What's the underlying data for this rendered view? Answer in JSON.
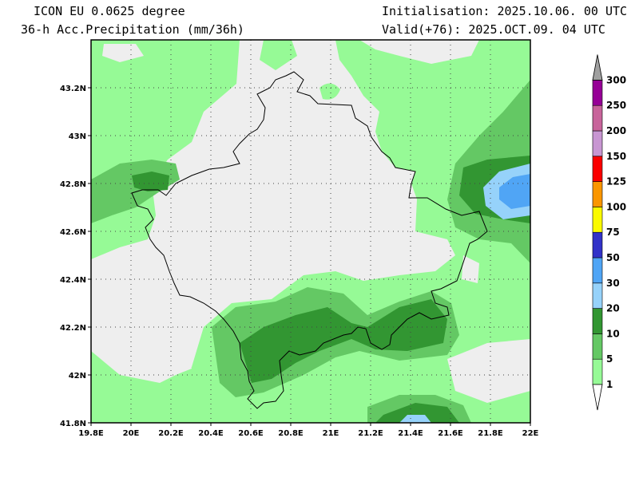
{
  "header": {
    "model": "ICON EU 0.0625 degree",
    "field": "36-h Acc.Precipitation (mm/36h)",
    "init": "Initialisation: 2025.10.06. 00 UTC",
    "valid": "Valid(+76): 2025.OCT.09. 04 UTC"
  },
  "map": {
    "lon_range": [
      19.8,
      22.0
    ],
    "lat_range": [
      41.8,
      43.4
    ],
    "lon_ticks": [
      "19.8E",
      "20E",
      "20.2E",
      "20.4E",
      "20.6E",
      "20.8E",
      "21E",
      "21.2E",
      "21.4E",
      "21.6E",
      "21.8E",
      "22E"
    ],
    "lat_ticks": [
      "41.8N",
      "42N",
      "42.2N",
      "42.4N",
      "42.6N",
      "42.8N",
      "43N",
      "43.2N"
    ],
    "colors": {
      "background": "#eeeeee",
      "p1": "#96fa96",
      "p5": "#64c864",
      "p10": "#329632",
      "p20": "#96d2fa",
      "p30": "#50a5f5"
    }
  },
  "colorbar": {
    "labels": [
      "1",
      "5",
      "10",
      "20",
      "30",
      "50",
      "75",
      "100",
      "125",
      "150",
      "200",
      "250",
      "300"
    ],
    "colors": [
      "#96fa96",
      "#64c864",
      "#329632",
      "#96d2fa",
      "#50a5f5",
      "#3232c8",
      "#fafa00",
      "#fa9600",
      "#fa0000",
      "#c896d2",
      "#c8649b",
      "#960096"
    ],
    "tip_colors": [
      "#ffffff",
      "#a0a0a0"
    ]
  }
}
